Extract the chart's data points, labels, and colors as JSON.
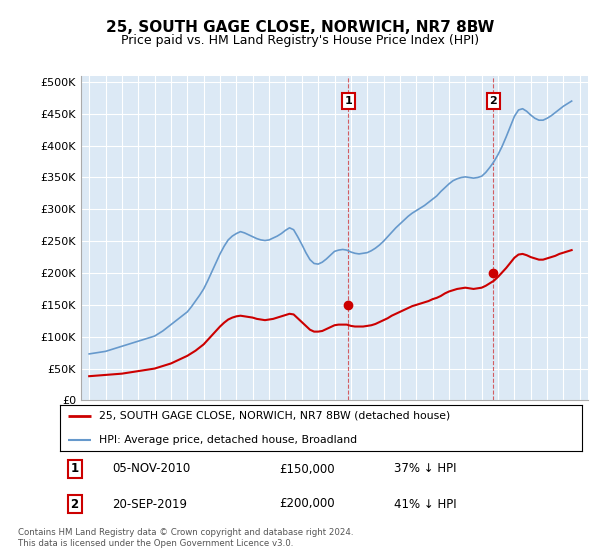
{
  "title": "25, SOUTH GAGE CLOSE, NORWICH, NR7 8BW",
  "subtitle": "Price paid vs. HM Land Registry's House Price Index (HPI)",
  "title_fontsize": 11,
  "subtitle_fontsize": 9,
  "background_color": "#ffffff",
  "plot_bg_color": "#dce9f5",
  "grid_color": "#ffffff",
  "ylabel_ticks": [
    "£0",
    "£50K",
    "£100K",
    "£150K",
    "£200K",
    "£250K",
    "£300K",
    "£350K",
    "£400K",
    "£450K",
    "£500K"
  ],
  "ytick_values": [
    0,
    50000,
    100000,
    150000,
    200000,
    250000,
    300000,
    350000,
    400000,
    450000,
    500000
  ],
  "xlim_start": 1994.5,
  "xlim_end": 2025.5,
  "ylim_min": 0,
  "ylim_max": 510000,
  "sale1_date": "05-NOV-2010",
  "sale1_year": 2010.85,
  "sale1_price": 150000,
  "sale1_label": "37% ↓ HPI",
  "sale2_date": "20-SEP-2019",
  "sale2_year": 2019.72,
  "sale2_price": 200000,
  "sale2_label": "41% ↓ HPI",
  "legend_line1": "25, SOUTH GAGE CLOSE, NORWICH, NR7 8BW (detached house)",
  "legend_line2": "HPI: Average price, detached house, Broadland",
  "footnote": "Contains HM Land Registry data © Crown copyright and database right 2024.\nThis data is licensed under the Open Government Licence v3.0.",
  "red_color": "#cc0000",
  "blue_color": "#6699cc",
  "hpi_years": [
    1995,
    1995.25,
    1995.5,
    1995.75,
    1996,
    1996.25,
    1996.5,
    1996.75,
    1997,
    1997.25,
    1997.5,
    1997.75,
    1998,
    1998.25,
    1998.5,
    1998.75,
    1999,
    1999.25,
    1999.5,
    1999.75,
    2000,
    2000.25,
    2000.5,
    2000.75,
    2001,
    2001.25,
    2001.5,
    2001.75,
    2002,
    2002.25,
    2002.5,
    2002.75,
    2003,
    2003.25,
    2003.5,
    2003.75,
    2004,
    2004.25,
    2004.5,
    2004.75,
    2005,
    2005.25,
    2005.5,
    2005.75,
    2006,
    2006.25,
    2006.5,
    2006.75,
    2007,
    2007.25,
    2007.5,
    2007.75,
    2008,
    2008.25,
    2008.5,
    2008.75,
    2009,
    2009.25,
    2009.5,
    2009.75,
    2010,
    2010.25,
    2010.5,
    2010.75,
    2011,
    2011.25,
    2011.5,
    2011.75,
    2012,
    2012.25,
    2012.5,
    2012.75,
    2013,
    2013.25,
    2013.5,
    2013.75,
    2014,
    2014.25,
    2014.5,
    2014.75,
    2015,
    2015.25,
    2015.5,
    2015.75,
    2016,
    2016.25,
    2016.5,
    2016.75,
    2017,
    2017.25,
    2017.5,
    2017.75,
    2018,
    2018.25,
    2018.5,
    2018.75,
    2019,
    2019.25,
    2019.5,
    2019.75,
    2020,
    2020.25,
    2020.5,
    2020.75,
    2021,
    2021.25,
    2021.5,
    2021.75,
    2022,
    2022.25,
    2022.5,
    2022.75,
    2023,
    2023.25,
    2023.5,
    2023.75,
    2024,
    2024.25,
    2024.5
  ],
  "hpi_values": [
    73000,
    74000,
    75000,
    76000,
    77000,
    79000,
    81000,
    83000,
    85000,
    87000,
    89000,
    91000,
    93000,
    95000,
    97000,
    99000,
    101000,
    105000,
    109000,
    114000,
    119000,
    124000,
    129000,
    134000,
    139000,
    147000,
    156000,
    165000,
    175000,
    188000,
    202000,
    216000,
    230000,
    242000,
    252000,
    258000,
    262000,
    265000,
    263000,
    260000,
    257000,
    254000,
    252000,
    251000,
    252000,
    255000,
    258000,
    262000,
    267000,
    271000,
    268000,
    257000,
    245000,
    232000,
    221000,
    215000,
    214000,
    217000,
    222000,
    228000,
    234000,
    236000,
    237000,
    236000,
    233000,
    231000,
    230000,
    231000,
    232000,
    235000,
    239000,
    244000,
    250000,
    257000,
    264000,
    271000,
    277000,
    283000,
    289000,
    294000,
    298000,
    302000,
    306000,
    311000,
    316000,
    321000,
    328000,
    334000,
    340000,
    345000,
    348000,
    350000,
    351000,
    350000,
    349000,
    350000,
    352000,
    358000,
    366000,
    375000,
    386000,
    399000,
    414000,
    430000,
    446000,
    456000,
    458000,
    454000,
    448000,
    443000,
    440000,
    440000,
    443000,
    447000,
    452000,
    457000,
    462000,
    466000,
    470000
  ],
  "red_years": [
    1995,
    1995.25,
    1995.5,
    1995.75,
    1996,
    1996.25,
    1996.5,
    1996.75,
    1997,
    1997.25,
    1997.5,
    1997.75,
    1998,
    1998.25,
    1998.5,
    1998.75,
    1999,
    1999.25,
    1999.5,
    1999.75,
    2000,
    2000.25,
    2000.5,
    2000.75,
    2001,
    2001.25,
    2001.5,
    2001.75,
    2002,
    2002.25,
    2002.5,
    2002.75,
    2003,
    2003.25,
    2003.5,
    2003.75,
    2004,
    2004.25,
    2004.5,
    2004.75,
    2005,
    2005.25,
    2005.5,
    2005.75,
    2006,
    2006.25,
    2006.5,
    2006.75,
    2007,
    2007.25,
    2007.5,
    2007.75,
    2008,
    2008.25,
    2008.5,
    2008.75,
    2009,
    2009.25,
    2009.5,
    2009.75,
    2010,
    2010.25,
    2010.5,
    2010.75,
    2011,
    2011.25,
    2011.5,
    2011.75,
    2012,
    2012.25,
    2012.5,
    2012.75,
    2013,
    2013.25,
    2013.5,
    2013.75,
    2014,
    2014.25,
    2014.5,
    2014.75,
    2015,
    2015.25,
    2015.5,
    2015.75,
    2016,
    2016.25,
    2016.5,
    2016.75,
    2017,
    2017.25,
    2017.5,
    2017.75,
    2018,
    2018.25,
    2018.5,
    2018.75,
    2019,
    2019.25,
    2019.5,
    2019.75,
    2020,
    2020.25,
    2020.5,
    2020.75,
    2021,
    2021.25,
    2021.5,
    2021.75,
    2022,
    2022.25,
    2022.5,
    2022.75,
    2023,
    2023.25,
    2023.5,
    2023.75,
    2024,
    2024.25,
    2024.5
  ],
  "red_values": [
    38000,
    38500,
    39000,
    39500,
    40000,
    40500,
    41000,
    41500,
    42000,
    43000,
    44000,
    45000,
    46000,
    47000,
    48000,
    49000,
    50000,
    52000,
    54000,
    56000,
    58000,
    61000,
    64000,
    67000,
    70000,
    74000,
    78000,
    83000,
    88000,
    95000,
    102000,
    109000,
    116000,
    122000,
    127000,
    130000,
    132000,
    133000,
    132000,
    131000,
    130000,
    128000,
    127000,
    126000,
    127000,
    128000,
    130000,
    132000,
    134000,
    136000,
    135000,
    129000,
    123000,
    117000,
    111000,
    108000,
    108000,
    109000,
    112000,
    115000,
    118000,
    119000,
    119000,
    119000,
    117000,
    116000,
    116000,
    116000,
    117000,
    118000,
    120000,
    123000,
    126000,
    129000,
    133000,
    136000,
    139000,
    142000,
    145000,
    148000,
    150000,
    152000,
    154000,
    156000,
    159000,
    161000,
    164000,
    168000,
    171000,
    173000,
    175000,
    176000,
    177000,
    176000,
    175000,
    176000,
    177000,
    180000,
    184000,
    188000,
    194000,
    201000,
    208000,
    216000,
    224000,
    229000,
    230000,
    228000,
    225000,
    223000,
    221000,
    221000,
    223000,
    225000,
    227000,
    230000,
    232000,
    234000,
    236000
  ]
}
